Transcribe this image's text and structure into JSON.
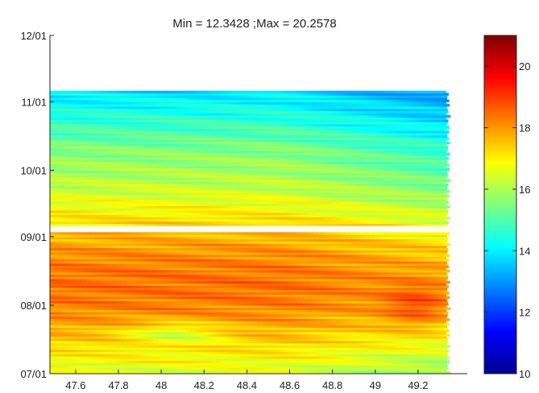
{
  "chart_data": {
    "type": "heatmap",
    "title": "Min = 12.3428 ;Max = 20.2578",
    "xlabel": "",
    "ylabel": "",
    "x_ticks": [
      "47.6",
      "47.8",
      "48",
      "48.2",
      "48.4",
      "48.6",
      "48.8",
      "49",
      "49.2"
    ],
    "x_tick_values": [
      47.6,
      47.8,
      48.0,
      48.2,
      48.4,
      48.6,
      48.8,
      49.0,
      49.2
    ],
    "xlim": [
      47.48,
      49.43
    ],
    "y_ticks": [
      "07/01",
      "08/01",
      "09/01",
      "10/01",
      "11/01",
      "12/01"
    ],
    "ylim": [
      "07/01",
      "12/01"
    ],
    "colorbar": {
      "ticks": [
        "10",
        "12",
        "14",
        "16",
        "18",
        "20"
      ],
      "tick_values": [
        10,
        12,
        14,
        16,
        18,
        20
      ],
      "range": [
        10,
        21
      ],
      "colormap": "jet"
    },
    "value_min": 12.3428,
    "value_max": 20.2578,
    "data_extent": {
      "x_range": [
        47.48,
        49.35
      ],
      "date_range": [
        "07/01",
        "11/05"
      ],
      "gap_after": "09/02",
      "resume_at": "09/06"
    },
    "grid": false,
    "legend": "none"
  }
}
